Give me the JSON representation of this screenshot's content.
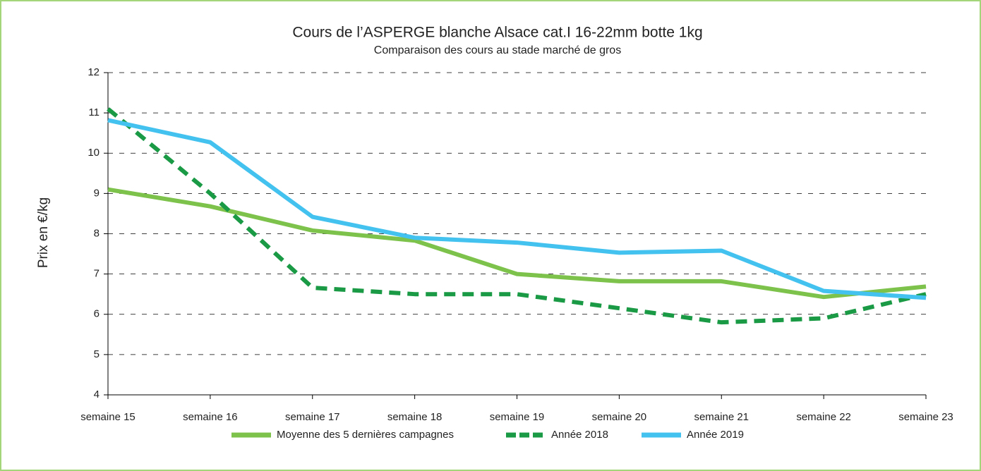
{
  "chart_data": {
    "type": "line",
    "title": "Cours de l’ASPERGE blanche Alsace cat.I 16-22mm botte 1kg",
    "subtitle": "Comparaison des cours au stade marché de gros",
    "y_label": "Prix en €/kg",
    "categories": [
      "semaine 15",
      "semaine 16",
      "semaine 17",
      "semaine 18",
      "semaine 19",
      "semaine 20",
      "semaine 21",
      "semaine 22",
      "semaine 23"
    ],
    "series": [
      {
        "name": "Moyenne des 5 dernières campagnes",
        "color": "#7dc24b",
        "dashed": false,
        "values": [
          9.1,
          8.68,
          8.08,
          7.83,
          7.0,
          6.82,
          6.82,
          6.43,
          6.69
        ]
      },
      {
        "name": "Année 2018",
        "color": "#1a9a45",
        "dashed": true,
        "values": [
          11.1,
          9.0,
          6.66,
          6.5,
          6.5,
          6.15,
          5.8,
          5.9,
          6.5
        ]
      },
      {
        "name": "Année 2019",
        "color": "#44c2ef",
        "dashed": false,
        "values": [
          10.82,
          10.27,
          8.42,
          7.9,
          7.78,
          7.53,
          7.58,
          6.58,
          6.41
        ]
      }
    ],
    "ylim": [
      4,
      12
    ],
    "yticks": [
      4,
      5,
      6,
      7,
      8,
      9,
      10,
      11,
      12
    ],
    "grid": true,
    "legend": "bottom"
  }
}
